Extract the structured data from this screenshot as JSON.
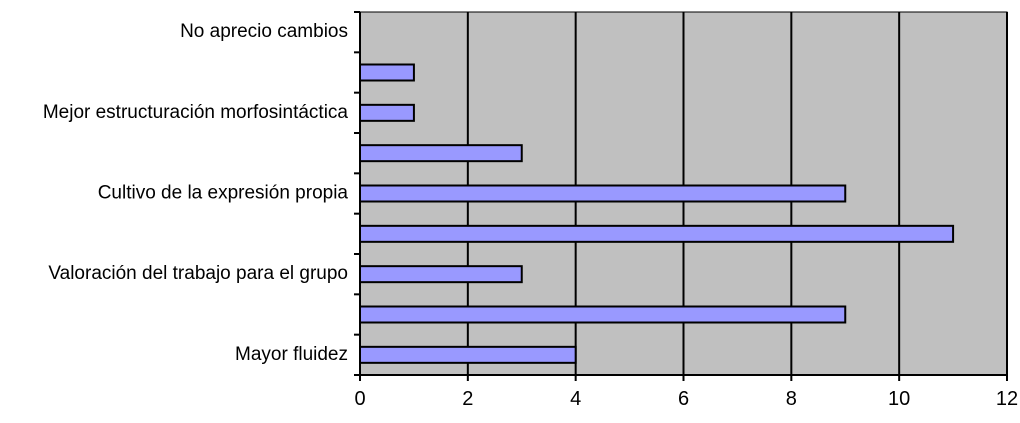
{
  "chart_data": {
    "type": "bar",
    "orientation": "horizontal",
    "categories": [
      "Mayor fluidez",
      "",
      "Valoración del trabajo para el grupo",
      "",
      "Cultivo de la expresión propia",
      "",
      "Mejor estructuración morfosintáctica",
      "",
      "No aprecio  cambios"
    ],
    "values": [
      4,
      9,
      3,
      11,
      9,
      3,
      1,
      1,
      0
    ],
    "xlim": [
      0,
      12
    ],
    "x_ticks": [
      "0",
      "2",
      "4",
      "6",
      "8",
      "10",
      "12"
    ],
    "grid": "vertical",
    "colors": {
      "plot_background": "#c0c0c0",
      "bar_fill": "#9999ff",
      "bar_stroke": "#000000",
      "gridline": "#000000"
    }
  }
}
